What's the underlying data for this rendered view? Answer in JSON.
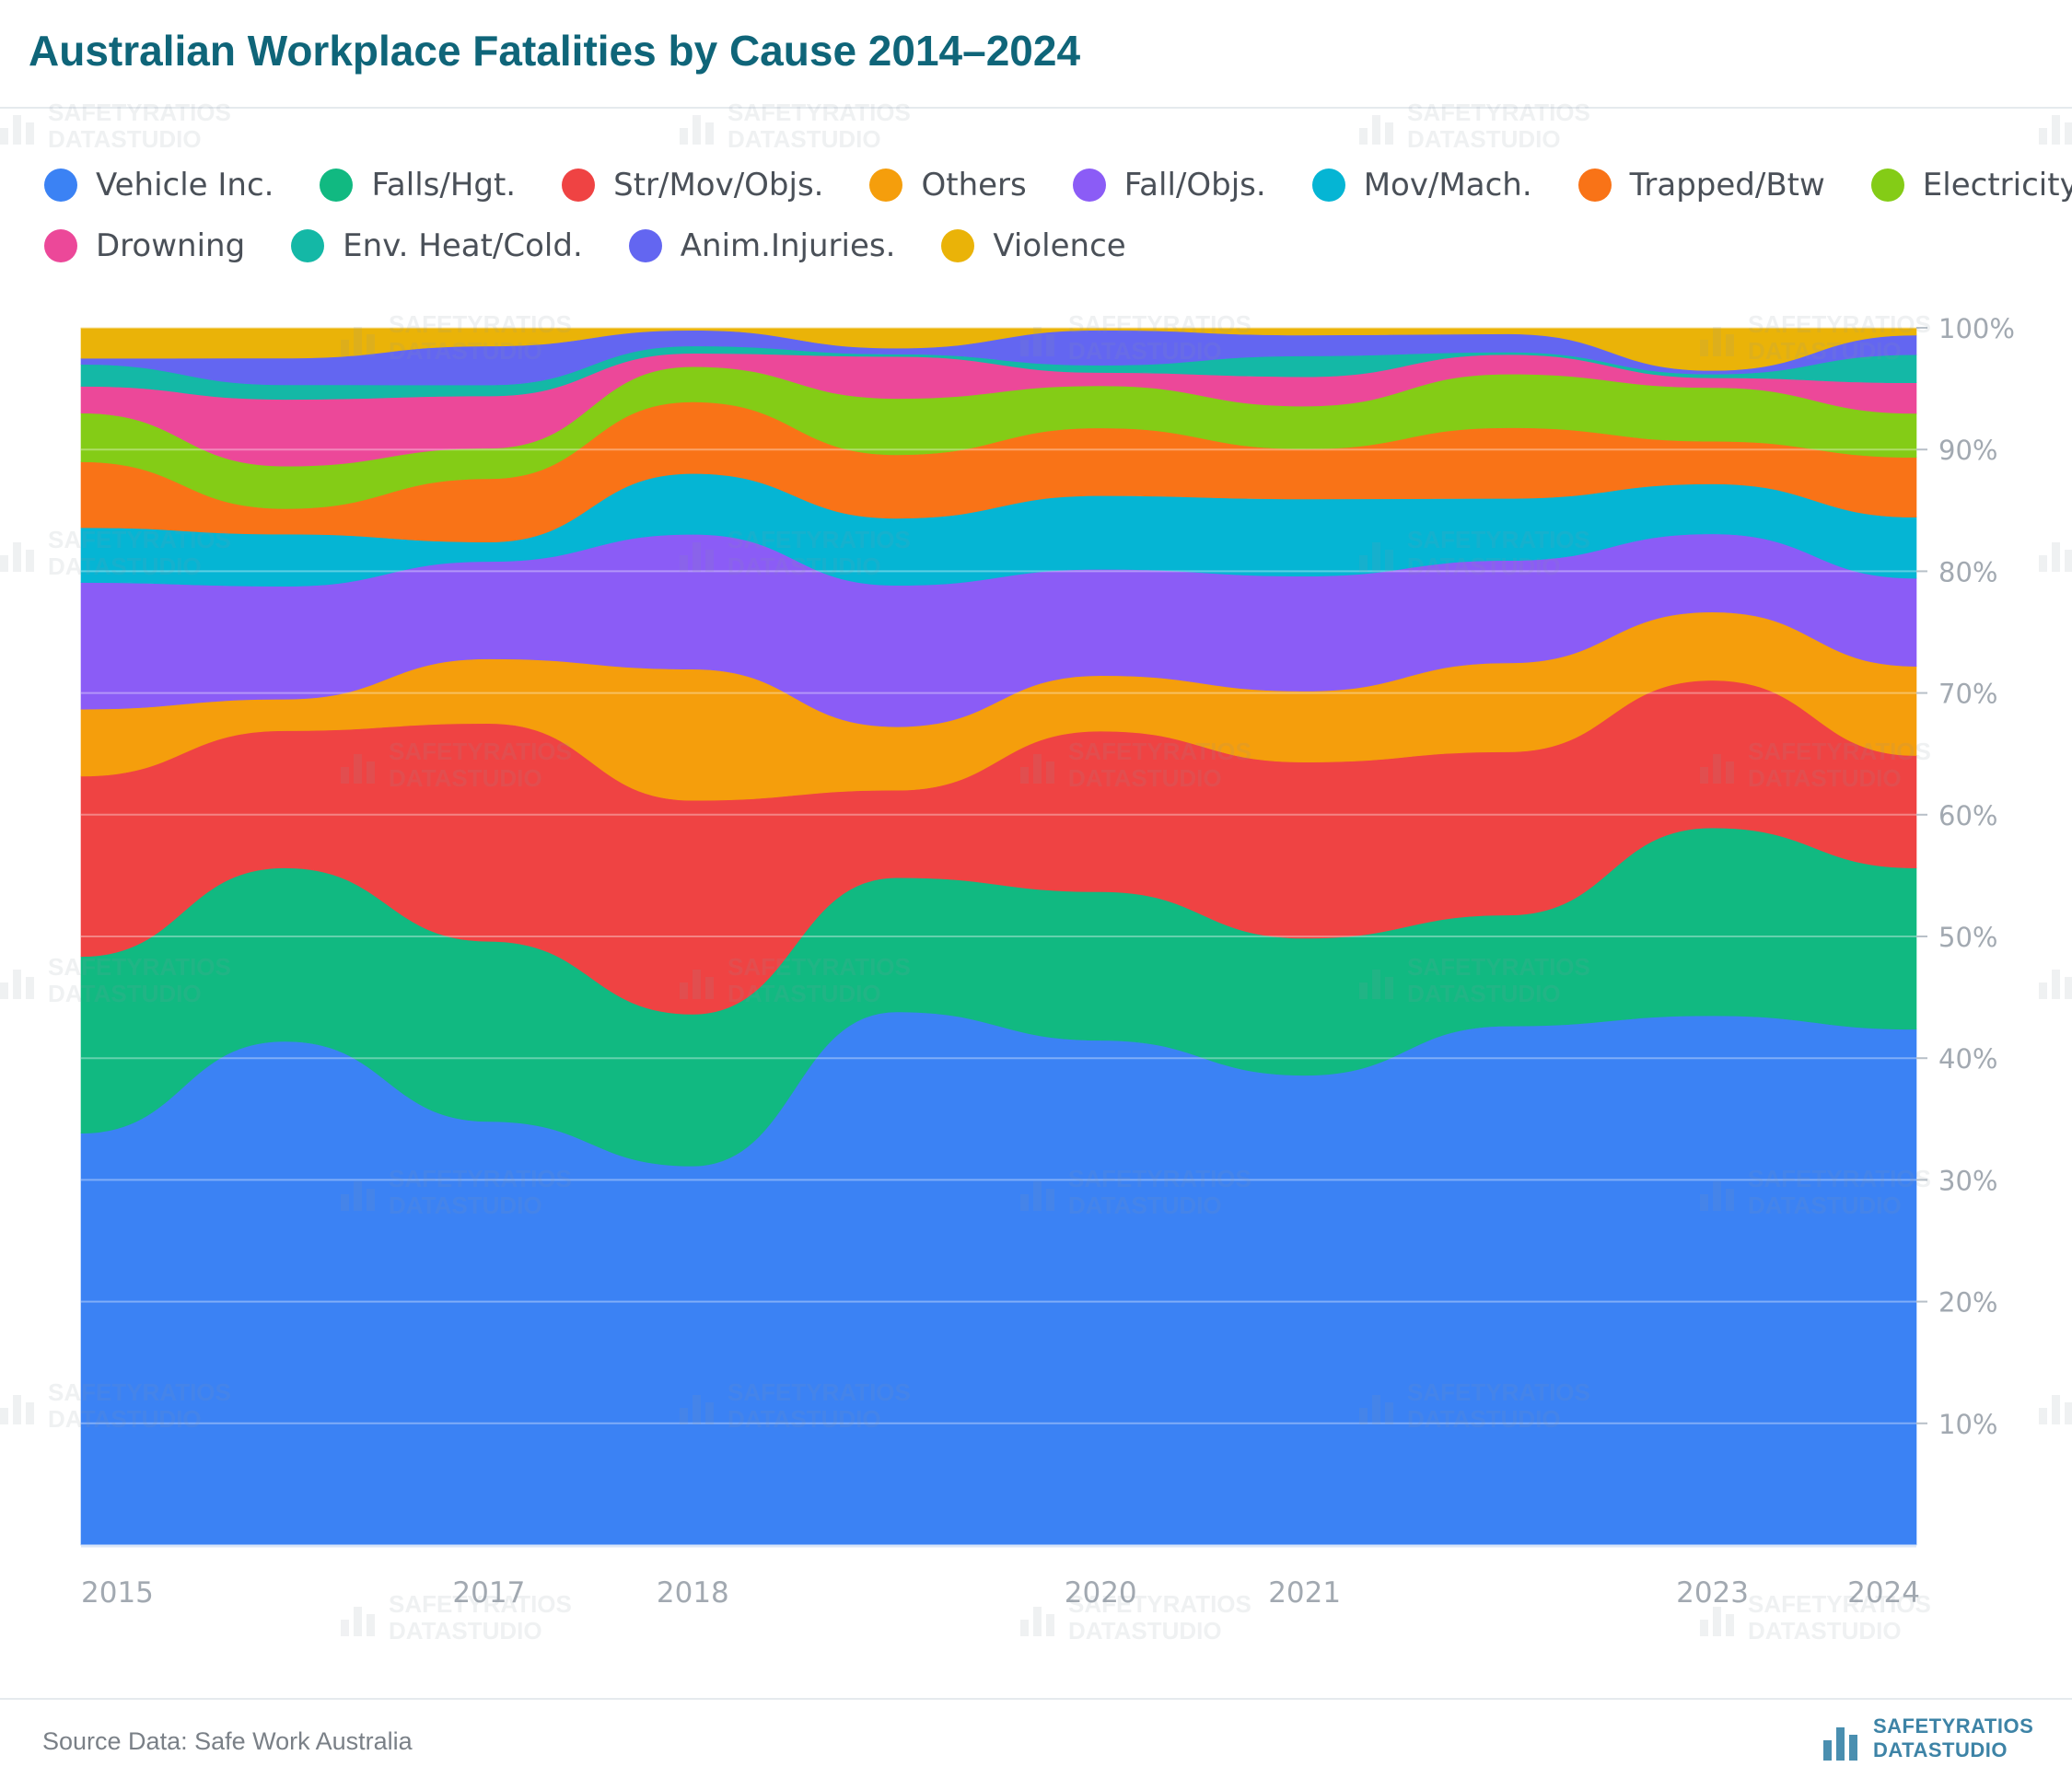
{
  "header": {
    "title": "Australian Workplace Fatalities by Cause 2014–2024"
  },
  "footer": {
    "source": "Source Data: Safe Work Australia",
    "brand_line1": "SAFETYRATIOS",
    "brand_line2": "DATASTUDIO"
  },
  "watermark": {
    "line1": "SAFETYRATIOS",
    "line2": "DATASTUDIO"
  },
  "chart_data": {
    "type": "area",
    "stacked": true,
    "normalized": true,
    "title": "Australian Workplace Fatalities by Cause 2014–2024",
    "x": [
      2015,
      2016,
      2017,
      2018,
      2019,
      2020,
      2021,
      2022,
      2023,
      2024
    ],
    "x_tick_labels": [
      "2015",
      "2017",
      "2018",
      "2020",
      "2021",
      "2023",
      "2024"
    ],
    "x_tick_values": [
      2015,
      2017,
      2018,
      2020,
      2021,
      2023,
      2024
    ],
    "ylim": [
      0,
      100
    ],
    "y_ticks": [
      10,
      20,
      30,
      40,
      50,
      60,
      70,
      80,
      90,
      100
    ],
    "y_tick_suffix": "%",
    "y_axis_side": "right",
    "grid": true,
    "legend_position": "top-left",
    "series": [
      {
        "name": "Vehicle Inc.",
        "color": "#3b82f4",
        "values": [
          33.8,
          41.5,
          34.8,
          31.2,
          44.5,
          41.8,
          38.4,
          42.6,
          43.4,
          42.2
        ]
      },
      {
        "name": "Falls/Hgt.",
        "color": "#11b981",
        "values": [
          14.5,
          14.3,
          14.8,
          12.5,
          11.2,
          12.3,
          11.2,
          9.1,
          15.4,
          13.2
        ]
      },
      {
        "name": "Str/Mov/Objs.",
        "color": "#ef4343",
        "values": [
          14.8,
          11.3,
          17.9,
          17.6,
          7.3,
          13.3,
          14.4,
          13.4,
          12.1,
          9.2
        ]
      },
      {
        "name": "Others",
        "color": "#f59e0c",
        "values": [
          5.5,
          2.6,
          5.3,
          10.8,
          5.3,
          4.6,
          5.8,
          7.3,
          5.6,
          7.3
        ]
      },
      {
        "name": "Fall/Objs.",
        "color": "#8b5cf6",
        "values": [
          10.4,
          9.3,
          8.0,
          11.1,
          11.8,
          8.8,
          9.4,
          8.4,
          6.4,
          7.2
        ]
      },
      {
        "name": "Mov/Mach.",
        "color": "#05b5d4",
        "values": [
          4.5,
          4.3,
          1.6,
          5.0,
          5.6,
          6.1,
          6.3,
          5.1,
          4.1,
          5.0
        ]
      },
      {
        "name": "Trapped/Btw",
        "color": "#f97317",
        "values": [
          5.4,
          2.1,
          5.2,
          5.9,
          5.3,
          5.6,
          4.1,
          5.8,
          3.5,
          4.9
        ]
      },
      {
        "name": "Electricity",
        "color": "#84cc16",
        "values": [
          4.0,
          3.5,
          2.5,
          2.9,
          4.7,
          3.5,
          3.5,
          4.4,
          4.4,
          3.6
        ]
      },
      {
        "name": "Drowning",
        "color": "#ec4899",
        "values": [
          2.2,
          5.5,
          4.3,
          1.1,
          3.5,
          1.1,
          2.4,
          1.6,
          0.8,
          2.5
        ]
      },
      {
        "name": "Env. Heat/Cold.",
        "color": "#14b8a6",
        "values": [
          1.8,
          1.2,
          0.9,
          0.6,
          0.2,
          0.6,
          1.7,
          0.2,
          0.3,
          2.3
        ]
      },
      {
        "name": "Anim.Injuries.",
        "color": "#6366f1",
        "values": [
          0.5,
          2.2,
          3.2,
          1.3,
          0.5,
          2.9,
          1.7,
          1.5,
          0.3,
          1.6
        ]
      },
      {
        "name": "Violence",
        "color": "#eab308",
        "values": [
          2.5,
          2.5,
          1.5,
          0.2,
          1.7,
          0.2,
          0.6,
          0.5,
          3.5,
          0.6
        ]
      }
    ]
  }
}
